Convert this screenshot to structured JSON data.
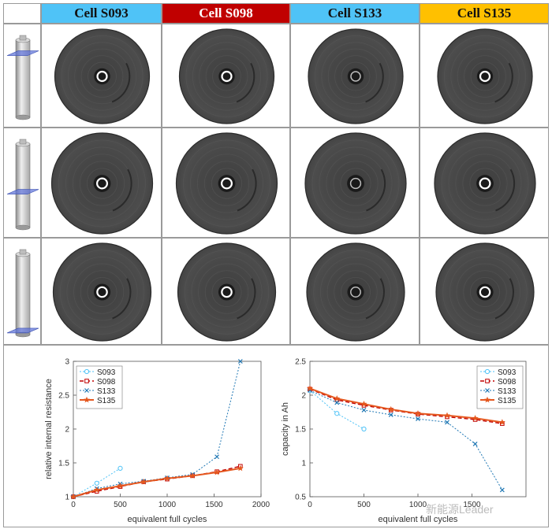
{
  "headers": [
    {
      "label": "Cell S093",
      "color": "#4fc3f7"
    },
    {
      "label": "Cell S098",
      "color": "#c00000"
    },
    {
      "label": "Cell S133",
      "color": "#4fc3f7"
    },
    {
      "label": "Cell S135",
      "color": "#ffc000"
    }
  ],
  "watermark": "新能源Leader",
  "chart_data": [
    {
      "type": "line",
      "xlabel": "equivalent full cycles",
      "ylabel": "relative internal resistance",
      "xlim": [
        0,
        2000
      ],
      "ylim": [
        1,
        3
      ],
      "xticks": [
        "0",
        "500",
        "1000",
        "1500",
        "2000"
      ],
      "yticks": [
        "1",
        "1.5",
        "2",
        "2.5",
        "3"
      ],
      "grid": false,
      "legend_position": "top-left",
      "series": [
        {
          "name": "S093",
          "color": "#4fc3f7",
          "x": [
            0,
            250,
            500
          ],
          "y": [
            1.0,
            1.2,
            1.42
          ]
        },
        {
          "name": "S098",
          "color": "#c00000",
          "x": [
            0,
            250,
            500,
            750,
            1000,
            1270,
            1530,
            1780
          ],
          "y": [
            1.0,
            1.08,
            1.15,
            1.22,
            1.26,
            1.31,
            1.37,
            1.45
          ]
        },
        {
          "name": "S133",
          "color": "#1f77b4",
          "x": [
            0,
            250,
            500,
            750,
            1000,
            1270,
            1530,
            1780
          ],
          "y": [
            1.0,
            1.12,
            1.19,
            1.23,
            1.28,
            1.33,
            1.59,
            3.0
          ]
        },
        {
          "name": "S135",
          "color": "#e5581f",
          "x": [
            0,
            250,
            500,
            750,
            1000,
            1270,
            1530,
            1780
          ],
          "y": [
            1.0,
            1.1,
            1.16,
            1.22,
            1.27,
            1.31,
            1.36,
            1.42
          ]
        }
      ]
    },
    {
      "type": "line",
      "xlabel": "equivalent full cycles",
      "ylabel": "capacity in Ah",
      "xlim": [
        0,
        2000
      ],
      "ylim": [
        0.5,
        2.5
      ],
      "xticks": [
        "0",
        "500",
        "1000",
        "1500"
      ],
      "yticks": [
        "0.5",
        "1",
        "1.5",
        "2",
        "2.5"
      ],
      "grid": false,
      "legend_position": "top-right",
      "series": [
        {
          "name": "S093",
          "color": "#4fc3f7",
          "x": [
            0,
            250,
            500
          ],
          "y": [
            2.07,
            1.73,
            1.5
          ]
        },
        {
          "name": "S098",
          "color": "#c00000",
          "x": [
            0,
            250,
            500,
            750,
            1000,
            1270,
            1530,
            1780
          ],
          "y": [
            2.09,
            1.93,
            1.85,
            1.78,
            1.72,
            1.68,
            1.64,
            1.58
          ]
        },
        {
          "name": "S133",
          "color": "#1f77b4",
          "x": [
            0,
            250,
            500,
            750,
            1000,
            1270,
            1530,
            1780
          ],
          "y": [
            2.07,
            1.89,
            1.78,
            1.71,
            1.65,
            1.6,
            1.28,
            0.6
          ]
        },
        {
          "name": "S135",
          "color": "#e5581f",
          "x": [
            0,
            250,
            500,
            750,
            1000,
            1270,
            1530,
            1780
          ],
          "y": [
            2.1,
            1.95,
            1.87,
            1.79,
            1.73,
            1.7,
            1.66,
            1.6
          ]
        }
      ]
    }
  ]
}
